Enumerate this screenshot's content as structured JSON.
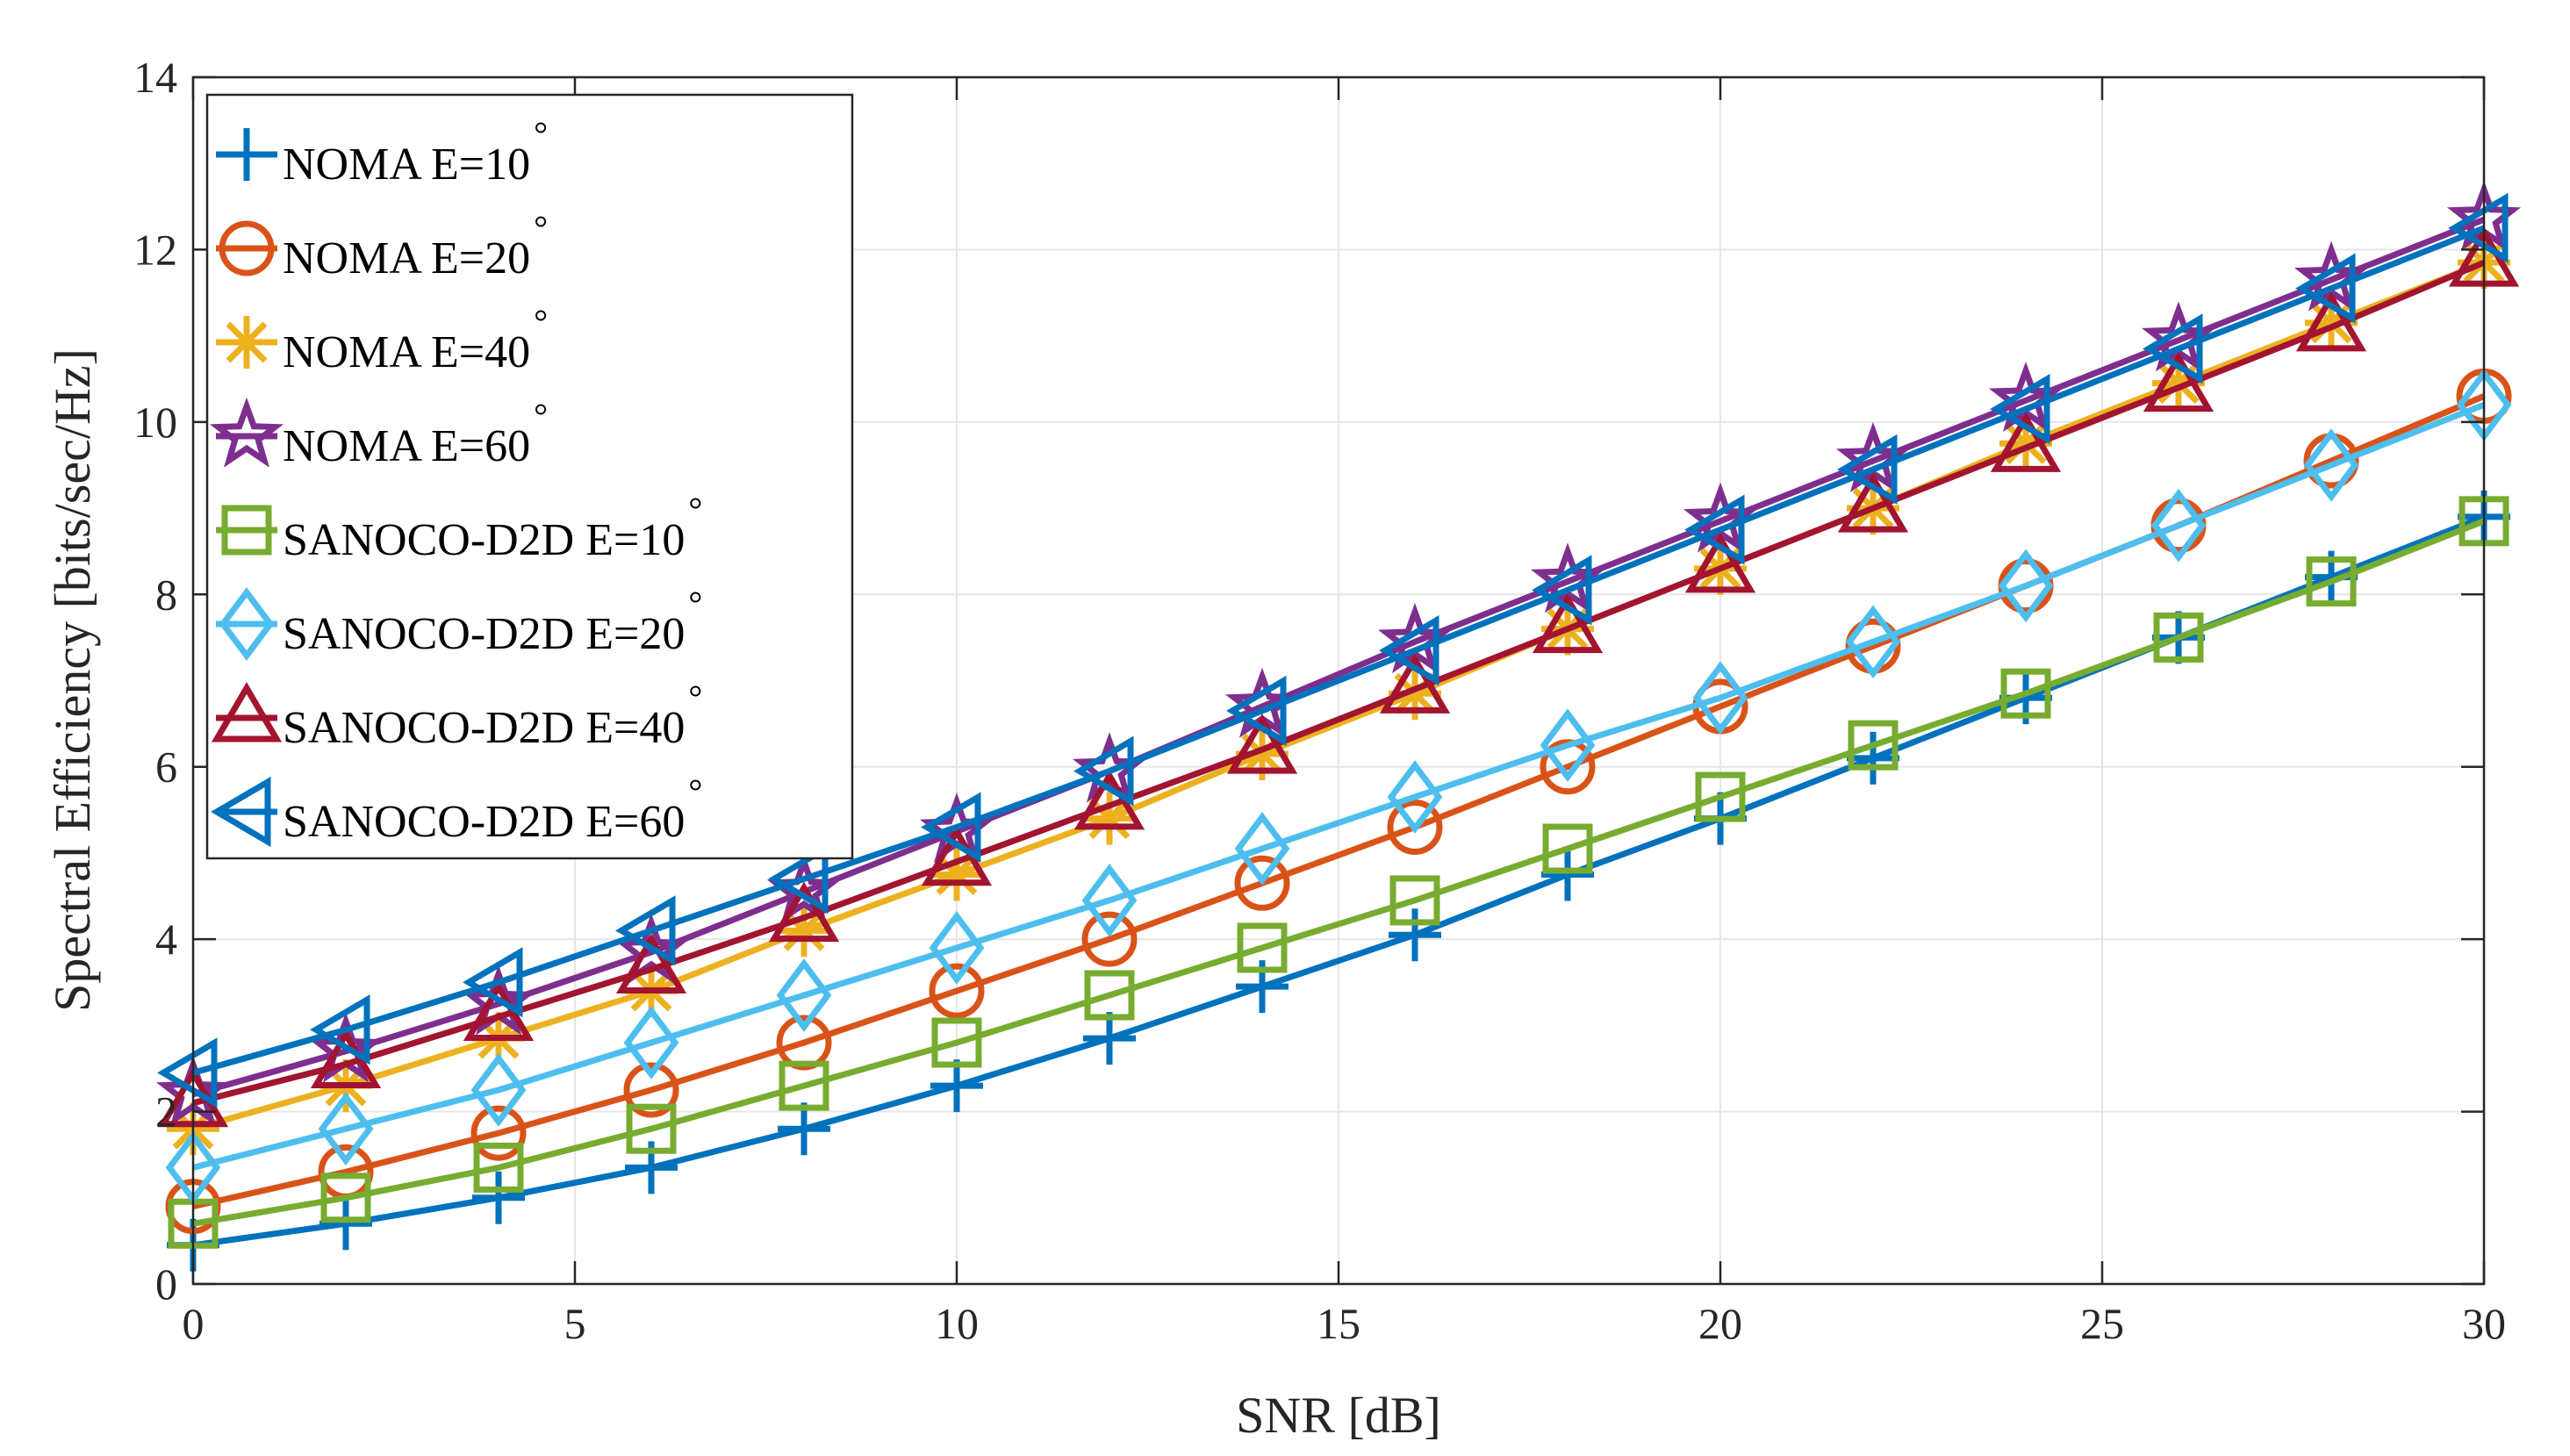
{
  "chart_data": {
    "type": "line",
    "title": "",
    "xlabel": "SNR [dB]",
    "ylabel": "Spectral Efficiency [bits/sec/Hz]",
    "xlim": [
      0,
      30
    ],
    "ylim": [
      0,
      14
    ],
    "xticks": [
      0,
      5,
      10,
      15,
      20,
      25,
      30
    ],
    "yticks": [
      0,
      2,
      4,
      6,
      8,
      10,
      12,
      14
    ],
    "xtick_labels": [
      "0",
      "5",
      "10",
      "15",
      "20",
      "25",
      "30"
    ],
    "ytick_labels": [
      "0",
      "2",
      "4",
      "6",
      "8",
      "10",
      "12",
      "14"
    ],
    "grid": true,
    "legend_position": "top-left",
    "x": [
      0,
      2,
      4,
      6,
      8,
      10,
      12,
      14,
      16,
      18,
      20,
      22,
      24,
      26,
      28,
      30
    ],
    "series": [
      {
        "name": "NOMA E=10",
        "degree": "°",
        "color": "#0072BD",
        "marker": "plus",
        "values": [
          0.45,
          0.7,
          1.0,
          1.35,
          1.8,
          2.3,
          2.85,
          3.45,
          4.05,
          4.75,
          5.4,
          6.1,
          6.8,
          7.5,
          8.2,
          8.9
        ]
      },
      {
        "name": "NOMA E=20",
        "degree": "°",
        "color": "#D95319",
        "marker": "circle",
        "values": [
          0.9,
          1.3,
          1.75,
          2.25,
          2.8,
          3.4,
          4.0,
          4.65,
          5.3,
          6.0,
          6.7,
          7.4,
          8.1,
          8.8,
          9.55,
          10.3
        ]
      },
      {
        "name": "NOMA E=40",
        "degree": "°",
        "color": "#EDB120",
        "marker": "asterisk",
        "values": [
          1.8,
          2.3,
          2.85,
          3.4,
          4.1,
          4.75,
          5.4,
          6.15,
          6.85,
          7.6,
          8.3,
          9.0,
          9.75,
          10.45,
          11.15,
          11.85
        ]
      },
      {
        "name": "NOMA E=60",
        "degree": "°",
        "color": "#7E2F8E",
        "marker": "pentagram",
        "values": [
          2.2,
          2.7,
          3.25,
          3.85,
          4.55,
          5.25,
          5.95,
          6.7,
          7.45,
          8.15,
          8.85,
          9.55,
          10.25,
          10.95,
          11.65,
          12.35
        ]
      },
      {
        "name": "SANOCO-D2D E=10",
        "degree": "°",
        "color": "#77AC30",
        "marker": "square",
        "values": [
          0.7,
          1.0,
          1.35,
          1.8,
          2.3,
          2.8,
          3.35,
          3.9,
          4.45,
          5.05,
          5.65,
          6.25,
          6.85,
          7.5,
          8.15,
          8.85
        ]
      },
      {
        "name": "SANOCO-D2D E=20",
        "degree": "°",
        "color": "#4DBEEE",
        "marker": "diamond",
        "values": [
          1.35,
          1.8,
          2.25,
          2.8,
          3.35,
          3.9,
          4.45,
          5.05,
          5.65,
          6.25,
          6.8,
          7.45,
          8.1,
          8.8,
          9.5,
          10.2
        ]
      },
      {
        "name": "SANOCO-D2D E=40",
        "degree": "°",
        "color": "#A2142F",
        "marker": "triangle-up",
        "values": [
          2.1,
          2.55,
          3.1,
          3.65,
          4.25,
          4.9,
          5.55,
          6.2,
          6.9,
          7.6,
          8.3,
          9.0,
          9.7,
          10.4,
          11.1,
          11.85
        ]
      },
      {
        "name": "SANOCO-D2D E=60",
        "degree": "°",
        "color": "#0072BD",
        "marker": "triangle-left",
        "values": [
          2.45,
          2.95,
          3.5,
          4.1,
          4.7,
          5.3,
          5.95,
          6.65,
          7.35,
          8.05,
          8.75,
          9.45,
          10.15,
          10.85,
          11.55,
          12.25
        ]
      }
    ]
  }
}
